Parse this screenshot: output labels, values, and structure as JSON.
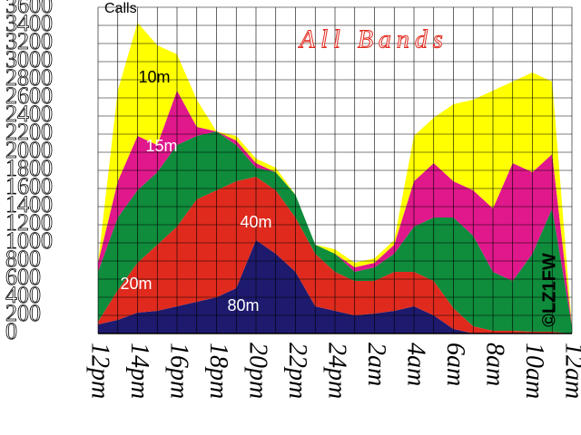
{
  "chart_data": {
    "type": "stacked_area",
    "title": "All Bands",
    "y_label": "Calls",
    "annotation": "©LZ1FW",
    "categories": [
      "12pm",
      null,
      "14pm",
      null,
      "16pm",
      null,
      "18pm",
      null,
      "20pm",
      null,
      "22pm",
      null,
      "24pm",
      null,
      "2am",
      null,
      "4am",
      null,
      "6am",
      null,
      "8am",
      null,
      "10am",
      null,
      "12am"
    ],
    "series": [
      {
        "name": "80m",
        "color": "#1e1a6e",
        "values": [
          100,
          150,
          230,
          250,
          300,
          350,
          400,
          500,
          1030,
          880,
          680,
          300,
          250,
          200,
          220,
          250,
          300,
          200,
          50,
          0,
          0,
          0,
          0,
          0,
          0
        ]
      },
      {
        "name": "40m",
        "color": "#e02a1e",
        "values": [
          30,
          330,
          550,
          730,
          880,
          1130,
          1180,
          1180,
          700,
          700,
          600,
          580,
          430,
          380,
          360,
          430,
          380,
          380,
          230,
          80,
          30,
          30,
          20,
          20,
          0
        ]
      },
      {
        "name": "20m",
        "color": "#0f8c3c",
        "values": [
          550,
          800,
          800,
          800,
          900,
          700,
          650,
          400,
          100,
          200,
          250,
          100,
          200,
          100,
          150,
          200,
          500,
          700,
          1000,
          1000,
          650,
          550,
          860,
          1360,
          80
        ]
      },
      {
        "name": "15m",
        "color": "#e0188c",
        "values": [
          100,
          400,
          600,
          300,
          600,
          100,
          0,
          50,
          50,
          0,
          0,
          0,
          0,
          50,
          50,
          100,
          500,
          600,
          400,
          500,
          700,
          1300,
          900,
          600,
          0
        ]
      },
      {
        "name": "10m",
        "color": "#ffff00",
        "values": [
          0,
          1000,
          1250,
          1100,
          400,
          300,
          0,
          50,
          50,
          50,
          0,
          0,
          50,
          50,
          50,
          50,
          500,
          500,
          850,
          1000,
          1300,
          900,
          1100,
          800,
          0
        ]
      }
    ],
    "ylim": [
      0,
      3600
    ],
    "yticks": [
      0,
      200,
      400,
      600,
      800,
      1000,
      1200,
      1400,
      1600,
      1800,
      2000,
      2200,
      2400,
      2600,
      2800,
      3000,
      3200,
      3400,
      3600
    ],
    "grid": true
  }
}
